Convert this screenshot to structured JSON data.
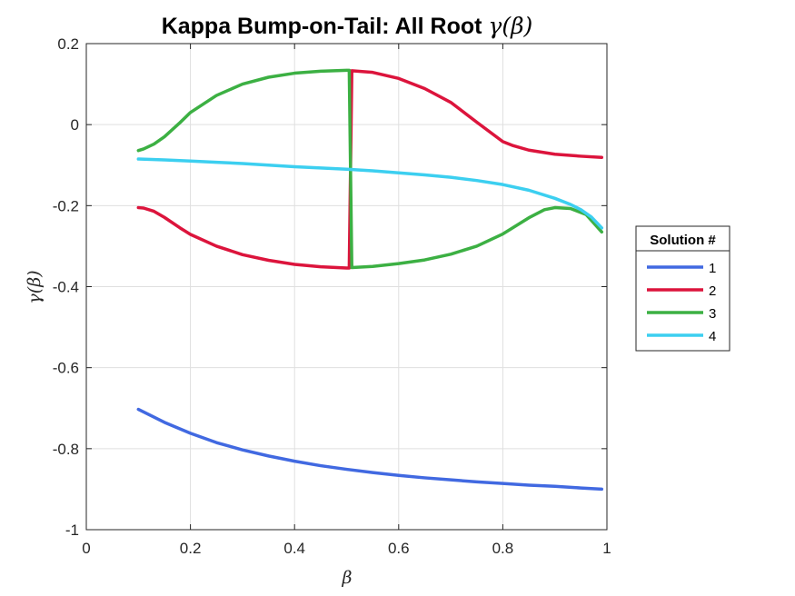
{
  "chart_data": {
    "type": "line",
    "title": "Kappa Bump-on-Tail: All Root ",
    "title_math": "γ(β)",
    "xlabel": "β",
    "ylabel": "γ(β)",
    "xlim": [
      0,
      1
    ],
    "ylim": [
      -1,
      0.2
    ],
    "xticks": [
      0,
      0.2,
      0.4,
      0.6,
      0.8,
      1
    ],
    "xtick_labels": [
      "0",
      "0.2",
      "0.4",
      "0.6",
      "0.8",
      "1"
    ],
    "yticks": [
      -1,
      -0.8,
      -0.6,
      -0.4,
      -0.2,
      0,
      0.2
    ],
    "ytick_labels": [
      "-1",
      "-0.8",
      "-0.6",
      "-0.4",
      "-0.2",
      "0",
      "0.2"
    ],
    "grid": true,
    "legend": {
      "title": "Solution #",
      "placement": "outside-right"
    },
    "series": [
      {
        "name": "1",
        "color": "#4169E1",
        "x": [
          0.1,
          0.15,
          0.2,
          0.25,
          0.3,
          0.35,
          0.4,
          0.45,
          0.5,
          0.55,
          0.6,
          0.65,
          0.7,
          0.75,
          0.8,
          0.85,
          0.9,
          0.95,
          0.99
        ],
        "y": [
          -0.703,
          -0.735,
          -0.762,
          -0.785,
          -0.803,
          -0.818,
          -0.831,
          -0.842,
          -0.851,
          -0.859,
          -0.866,
          -0.872,
          -0.877,
          -0.882,
          -0.886,
          -0.89,
          -0.893,
          -0.897,
          -0.9
        ]
      },
      {
        "name": "2",
        "color": "#DC143C",
        "x": [
          0.1,
          0.11,
          0.13,
          0.15,
          0.18,
          0.2,
          0.25,
          0.3,
          0.35,
          0.4,
          0.45,
          0.5,
          0.505,
          0.51,
          0.55,
          0.6,
          0.65,
          0.7,
          0.75,
          0.8,
          0.82,
          0.85,
          0.9,
          0.95,
          0.99
        ],
        "y": [
          -0.205,
          -0.206,
          -0.214,
          -0.229,
          -0.255,
          -0.271,
          -0.3,
          -0.321,
          -0.335,
          -0.345,
          -0.351,
          -0.354,
          -0.354,
          0.133,
          0.129,
          0.114,
          0.089,
          0.055,
          0.006,
          -0.042,
          -0.052,
          -0.063,
          -0.073,
          -0.078,
          -0.081
        ]
      },
      {
        "name": "3",
        "color": "#3CB043",
        "x": [
          0.1,
          0.11,
          0.13,
          0.15,
          0.18,
          0.2,
          0.25,
          0.3,
          0.35,
          0.4,
          0.45,
          0.5,
          0.505,
          0.51,
          0.55,
          0.6,
          0.65,
          0.7,
          0.75,
          0.8,
          0.85,
          0.88,
          0.9,
          0.93,
          0.96,
          0.99
        ],
        "y": [
          -0.064,
          -0.06,
          -0.048,
          -0.03,
          0.005,
          0.03,
          0.072,
          0.1,
          0.117,
          0.127,
          0.132,
          0.134,
          0.134,
          -0.353,
          -0.35,
          -0.343,
          -0.334,
          -0.32,
          -0.3,
          -0.27,
          -0.23,
          -0.21,
          -0.205,
          -0.207,
          -0.222,
          -0.265
        ]
      },
      {
        "name": "4",
        "color": "#3CCFF0",
        "x": [
          0.1,
          0.15,
          0.2,
          0.25,
          0.3,
          0.35,
          0.4,
          0.45,
          0.5,
          0.55,
          0.6,
          0.65,
          0.7,
          0.75,
          0.8,
          0.85,
          0.9,
          0.93,
          0.95,
          0.97,
          0.99
        ],
        "y": [
          -0.085,
          -0.087,
          -0.09,
          -0.093,
          -0.096,
          -0.1,
          -0.104,
          -0.107,
          -0.11,
          -0.114,
          -0.119,
          -0.124,
          -0.13,
          -0.138,
          -0.148,
          -0.162,
          -0.182,
          -0.197,
          -0.21,
          -0.228,
          -0.255
        ]
      }
    ]
  }
}
